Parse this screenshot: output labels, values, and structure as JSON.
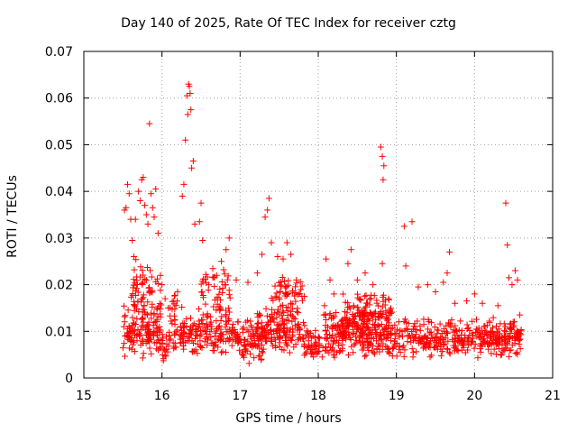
{
  "chart_data": {
    "type": "scatter",
    "title": "Day 140 of 2025, Rate Of TEC Index for receiver cztg",
    "xlabel": "GPS time / hours",
    "ylabel": "ROTI / TECUs",
    "xlim": [
      15,
      21
    ],
    "ylim": [
      0,
      0.07
    ],
    "xticks": [
      "15",
      "16",
      "17",
      "18",
      "19",
      "20",
      "21"
    ],
    "yticks": [
      "0",
      "0.01",
      "0.02",
      "0.03",
      "0.04",
      "0.05",
      "0.06",
      "0.07"
    ],
    "grid": true,
    "marker": "plus",
    "color": "#ff0000",
    "series": [
      {
        "name": "ROTI",
        "points": [
          [
            15.52,
            0.036
          ],
          [
            15.54,
            0.0365
          ],
          [
            15.56,
            0.0415
          ],
          [
            15.58,
            0.0395
          ],
          [
            15.6,
            0.034
          ],
          [
            15.62,
            0.0295
          ],
          [
            15.64,
            0.026
          ],
          [
            15.66,
            0.034
          ],
          [
            15.7,
            0.04
          ],
          [
            15.72,
            0.038
          ],
          [
            15.74,
            0.0425
          ],
          [
            15.76,
            0.043
          ],
          [
            15.78,
            0.037
          ],
          [
            15.8,
            0.035
          ],
          [
            15.82,
            0.033
          ],
          [
            15.84,
            0.0545
          ],
          [
            15.86,
            0.0395
          ],
          [
            15.88,
            0.0365
          ],
          [
            15.9,
            0.0345
          ],
          [
            15.92,
            0.0405
          ],
          [
            15.95,
            0.031
          ],
          [
            15.98,
            0.022
          ],
          [
            16.0,
            0.02
          ],
          [
            16.04,
            0.017
          ],
          [
            16.08,
            0.015
          ],
          [
            16.2,
            0.0185
          ],
          [
            16.26,
            0.039
          ],
          [
            16.28,
            0.0415
          ],
          [
            16.3,
            0.051
          ],
          [
            16.32,
            0.0605
          ],
          [
            16.33,
            0.0565
          ],
          [
            16.34,
            0.063
          ],
          [
            16.35,
            0.0625
          ],
          [
            16.36,
            0.061
          ],
          [
            16.37,
            0.0575
          ],
          [
            16.38,
            0.045
          ],
          [
            16.4,
            0.0465
          ],
          [
            16.42,
            0.033
          ],
          [
            16.48,
            0.0335
          ],
          [
            16.5,
            0.0375
          ],
          [
            16.52,
            0.0295
          ],
          [
            16.6,
            0.02
          ],
          [
            16.7,
            0.022
          ],
          [
            16.76,
            0.025
          ],
          [
            16.82,
            0.0275
          ],
          [
            16.86,
            0.03
          ],
          [
            16.95,
            0.021
          ],
          [
            17.1,
            0.0205
          ],
          [
            17.22,
            0.0225
          ],
          [
            17.28,
            0.0265
          ],
          [
            17.32,
            0.0345
          ],
          [
            17.35,
            0.036
          ],
          [
            17.37,
            0.0385
          ],
          [
            17.4,
            0.029
          ],
          [
            17.48,
            0.026
          ],
          [
            17.55,
            0.0255
          ],
          [
            17.6,
            0.029
          ],
          [
            17.65,
            0.0265
          ],
          [
            17.72,
            0.021
          ],
          [
            17.82,
            0.0175
          ],
          [
            18.1,
            0.0255
          ],
          [
            18.15,
            0.021
          ],
          [
            18.2,
            0.018
          ],
          [
            18.38,
            0.0245
          ],
          [
            18.42,
            0.0275
          ],
          [
            18.5,
            0.021
          ],
          [
            18.6,
            0.0225
          ],
          [
            18.7,
            0.02
          ],
          [
            18.8,
            0.0495
          ],
          [
            18.82,
            0.0475
          ],
          [
            18.84,
            0.0455
          ],
          [
            18.83,
            0.0425
          ],
          [
            18.82,
            0.0245
          ],
          [
            18.9,
            0.017
          ],
          [
            19.1,
            0.0325
          ],
          [
            19.12,
            0.024
          ],
          [
            19.2,
            0.0335
          ],
          [
            19.28,
            0.0195
          ],
          [
            19.4,
            0.02
          ],
          [
            19.5,
            0.0185
          ],
          [
            19.6,
            0.0205
          ],
          [
            19.65,
            0.0225
          ],
          [
            19.68,
            0.027
          ],
          [
            19.75,
            0.016
          ],
          [
            19.9,
            0.0165
          ],
          [
            20.0,
            0.018
          ],
          [
            20.1,
            0.016
          ],
          [
            20.3,
            0.0155
          ],
          [
            20.4,
            0.0375
          ],
          [
            20.42,
            0.0285
          ],
          [
            20.44,
            0.0215
          ],
          [
            20.48,
            0.02
          ],
          [
            20.52,
            0.023
          ],
          [
            20.55,
            0.021
          ],
          [
            20.58,
            0.0135
          ],
          [
            18.05,
            0.0045
          ],
          [
            18.06,
            0.0065
          ],
          [
            18.07,
            0.0135
          ],
          [
            18.08,
            0.0155
          ]
        ],
        "bands": [
          {
            "x_start": 15.5,
            "x_end": 15.98,
            "y_min": 0.004,
            "y_max": 0.016,
            "count": 140
          },
          {
            "x_start": 15.6,
            "x_end": 16.0,
            "y_min": 0.012,
            "y_max": 0.026,
            "count": 60
          },
          {
            "x_start": 16.0,
            "x_end": 16.18,
            "y_min": 0.003,
            "y_max": 0.011,
            "count": 30
          },
          {
            "x_start": 16.1,
            "x_end": 16.2,
            "y_min": 0.01,
            "y_max": 0.019,
            "count": 18
          },
          {
            "x_start": 16.22,
            "x_end": 16.95,
            "y_min": 0.004,
            "y_max": 0.016,
            "count": 170
          },
          {
            "x_start": 16.5,
            "x_end": 16.9,
            "y_min": 0.013,
            "y_max": 0.024,
            "count": 40
          },
          {
            "x_start": 16.95,
            "x_end": 17.3,
            "y_min": 0.003,
            "y_max": 0.013,
            "count": 90
          },
          {
            "x_start": 17.2,
            "x_end": 17.8,
            "y_min": 0.005,
            "y_max": 0.016,
            "count": 140
          },
          {
            "x_start": 17.4,
            "x_end": 17.8,
            "y_min": 0.013,
            "y_max": 0.023,
            "count": 50
          },
          {
            "x_start": 17.8,
            "x_end": 18.02,
            "y_min": 0.004,
            "y_max": 0.012,
            "count": 50
          },
          {
            "x_start": 18.08,
            "x_end": 18.6,
            "y_min": 0.004,
            "y_max": 0.015,
            "count": 150
          },
          {
            "x_start": 18.3,
            "x_end": 18.95,
            "y_min": 0.008,
            "y_max": 0.019,
            "count": 130
          },
          {
            "x_start": 18.6,
            "x_end": 19.2,
            "y_min": 0.004,
            "y_max": 0.014,
            "count": 120
          },
          {
            "x_start": 19.2,
            "x_end": 19.9,
            "y_min": 0.004,
            "y_max": 0.013,
            "count": 160
          },
          {
            "x_start": 19.9,
            "x_end": 20.3,
            "y_min": 0.004,
            "y_max": 0.013,
            "count": 100
          },
          {
            "x_start": 20.3,
            "x_end": 20.6,
            "y_min": 0.004,
            "y_max": 0.013,
            "count": 90
          }
        ]
      }
    ]
  }
}
